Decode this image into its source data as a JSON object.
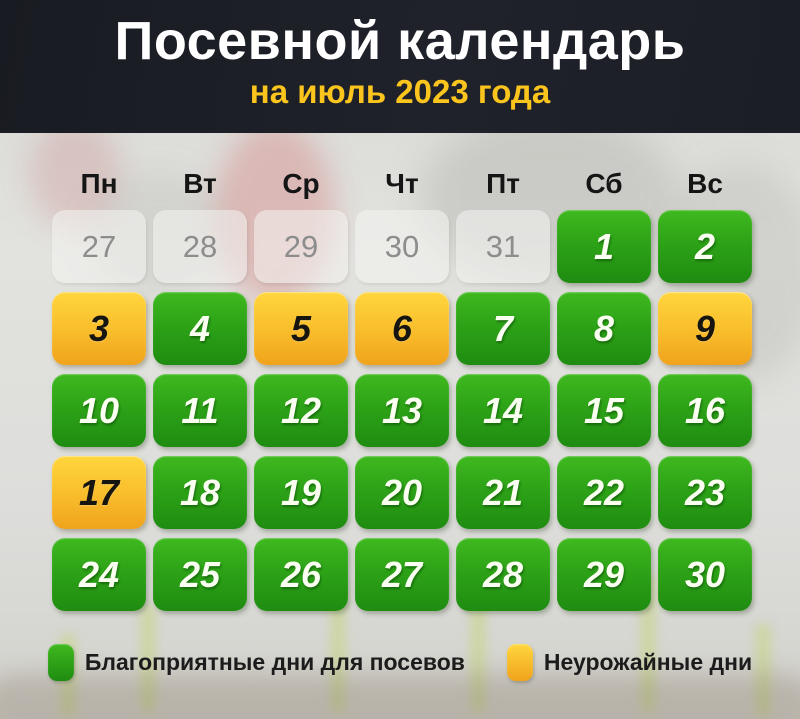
{
  "header": {
    "title": "Посевной календарь",
    "subtitle": "на июль 2023 года"
  },
  "calendar": {
    "weekdays": [
      "Пн",
      "Вт",
      "Ср",
      "Чт",
      "Пт",
      "Сб",
      "Вс"
    ],
    "weeks": [
      [
        {
          "day": "27",
          "type": "muted"
        },
        {
          "day": "28",
          "type": "muted"
        },
        {
          "day": "29",
          "type": "muted"
        },
        {
          "day": "30",
          "type": "muted"
        },
        {
          "day": "31",
          "type": "muted"
        },
        {
          "day": "1",
          "type": "good"
        },
        {
          "day": "2",
          "type": "good"
        }
      ],
      [
        {
          "day": "3",
          "type": "bad"
        },
        {
          "day": "4",
          "type": "good"
        },
        {
          "day": "5",
          "type": "bad"
        },
        {
          "day": "6",
          "type": "bad"
        },
        {
          "day": "7",
          "type": "good"
        },
        {
          "day": "8",
          "type": "good"
        },
        {
          "day": "9",
          "type": "bad"
        }
      ],
      [
        {
          "day": "10",
          "type": "good"
        },
        {
          "day": "11",
          "type": "good"
        },
        {
          "day": "12",
          "type": "good"
        },
        {
          "day": "13",
          "type": "good"
        },
        {
          "day": "14",
          "type": "good"
        },
        {
          "day": "15",
          "type": "good"
        },
        {
          "day": "16",
          "type": "good"
        }
      ],
      [
        {
          "day": "17",
          "type": "bad"
        },
        {
          "day": "18",
          "type": "good"
        },
        {
          "day": "19",
          "type": "good"
        },
        {
          "day": "20",
          "type": "good"
        },
        {
          "day": "21",
          "type": "good"
        },
        {
          "day": "22",
          "type": "good"
        },
        {
          "day": "23",
          "type": "good"
        }
      ],
      [
        {
          "day": "24",
          "type": "good"
        },
        {
          "day": "25",
          "type": "good"
        },
        {
          "day": "26",
          "type": "good"
        },
        {
          "day": "27",
          "type": "good"
        },
        {
          "day": "28",
          "type": "good"
        },
        {
          "day": "29",
          "type": "good"
        },
        {
          "day": "30",
          "type": "good"
        }
      ]
    ]
  },
  "legend": {
    "good": {
      "label": "Благоприятные дни для посевов"
    },
    "bad": {
      "label": "Неурожайные дни"
    }
  },
  "colors": {
    "header_background": "#1d1f27",
    "title_text": "#ffffff",
    "subtitle_yellow": "#fbc51e",
    "good_day_top": "#3fb91f",
    "good_day_bottom": "#1f8c11",
    "bad_day_top": "#ffd63e",
    "bad_day_bottom": "#f0a31c",
    "muted_day_text": "#8d8d8d",
    "legend_text": "#1c1c1c"
  }
}
